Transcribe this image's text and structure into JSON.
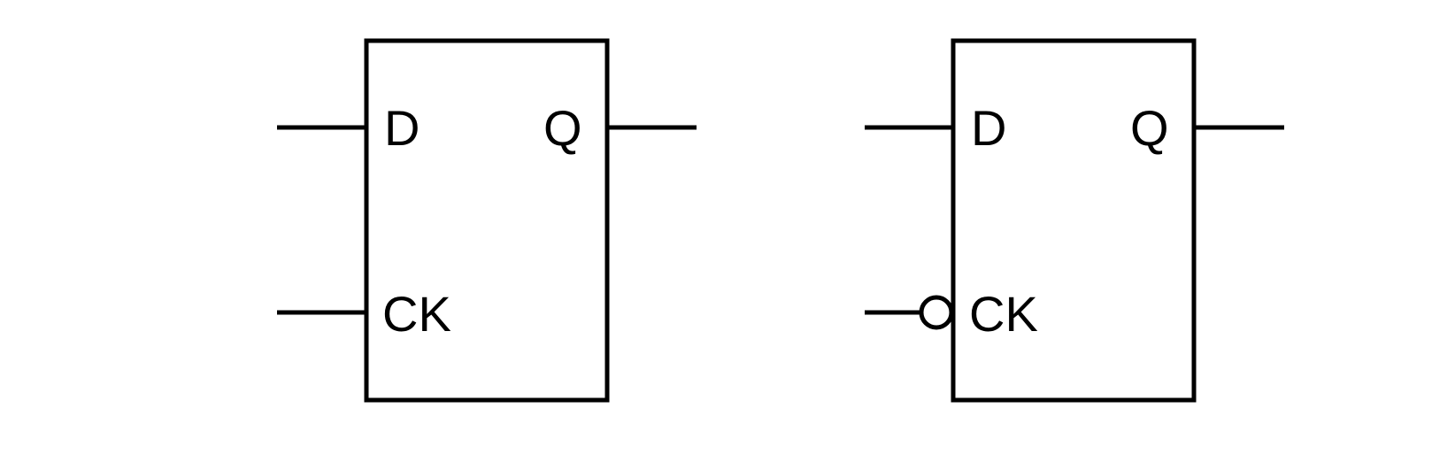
{
  "colors": {
    "line": "#000000",
    "background": "#ffffff"
  },
  "flip_flops": [
    {
      "clock_edge": "rising",
      "labels": {
        "d": "D",
        "q": "Q",
        "ck": "CK"
      }
    },
    {
      "clock_edge": "falling",
      "labels": {
        "d": "D",
        "q": "Q",
        "ck": "CK"
      }
    }
  ]
}
